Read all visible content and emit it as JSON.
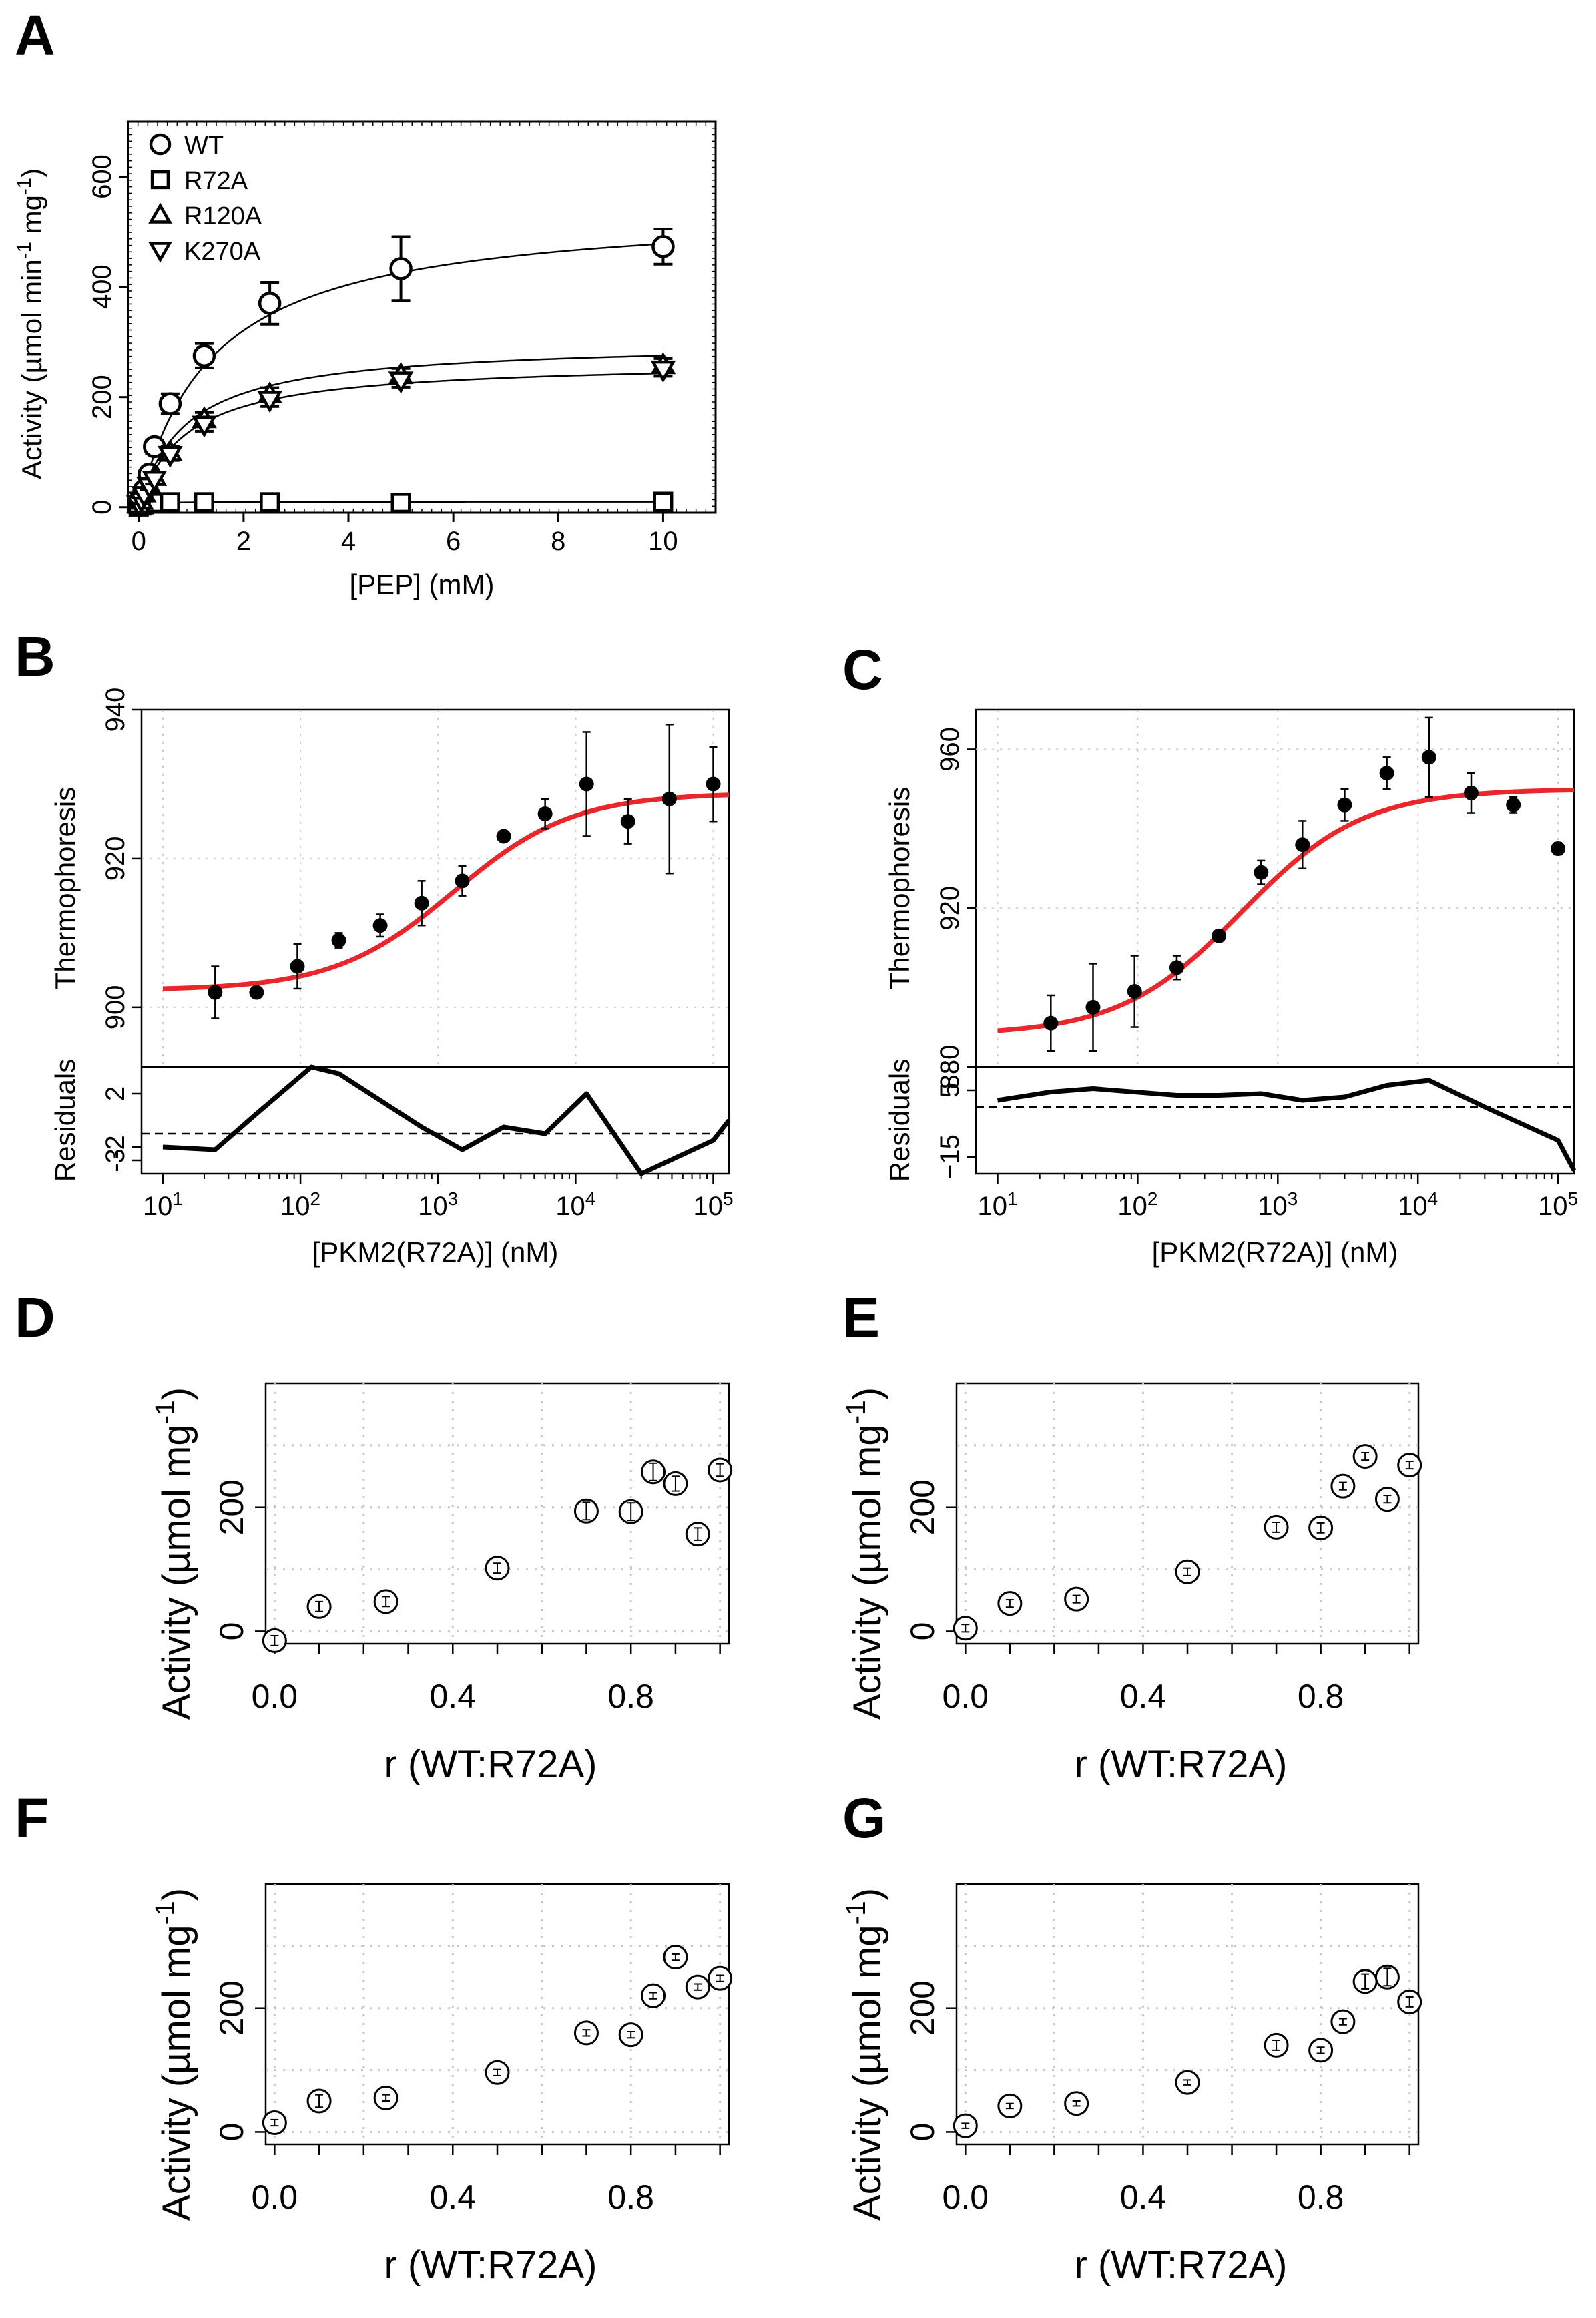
{
  "panel_labels": [
    "A",
    "B",
    "C",
    "D",
    "E",
    "F",
    "G"
  ],
  "colors": {
    "fit_red": "#e8262b",
    "ink": "#000000",
    "grid": "#c8c8c8"
  },
  "chart_data": [
    {
      "id": "A",
      "type": "scatter",
      "xlabel": "[PEP] (mM)",
      "ylabel": "Activity (µmol min⁻¹ mg⁻¹)",
      "xlim": [
        -0.2,
        11
      ],
      "ylim": [
        -10,
        700
      ],
      "xticks": [
        0,
        2,
        4,
        6,
        8,
        10
      ],
      "yticks": [
        0,
        200,
        400,
        600
      ],
      "legend_position": "top-left",
      "series": [
        {
          "name": "WT",
          "marker": "circle",
          "x": [
            0,
            0.05,
            0.1,
            0.2,
            0.3,
            0.6,
            1.25,
            2.5,
            5,
            10
          ],
          "y": [
            8,
            15,
            30,
            60,
            110,
            188,
            275,
            370,
            433,
            473
          ],
          "err": [
            5,
            5,
            8,
            10,
            12,
            18,
            22,
            38,
            58,
            32
          ],
          "fit": {
            "vmax": 545,
            "km": 1.4
          }
        },
        {
          "name": "R72A",
          "marker": "square",
          "x": [
            0,
            0.05,
            0.1,
            0.2,
            0.3,
            0.6,
            1.25,
            2.5,
            5,
            10
          ],
          "y": [
            1,
            3,
            5,
            7,
            8,
            9,
            9,
            9,
            8,
            10
          ],
          "err": [
            1,
            1,
            1,
            1,
            1,
            1,
            1,
            1,
            1,
            1
          ],
          "fit": {
            "vmax": 10,
            "km": 0.15
          }
        },
        {
          "name": "R120A",
          "marker": "triangle",
          "x": [
            0,
            0.05,
            0.1,
            0.2,
            0.3,
            0.6,
            1.25,
            2.5,
            5,
            10
          ],
          "y": [
            5,
            12,
            25,
            40,
            55,
            100,
            160,
            205,
            240,
            258
          ],
          "err": [
            4,
            5,
            6,
            6,
            8,
            10,
            12,
            12,
            12,
            12
          ],
          "fit": {
            "vmax": 300,
            "km": 0.9
          }
        },
        {
          "name": "K270A",
          "marker": "triangle-down",
          "x": [
            0,
            0.05,
            0.1,
            0.2,
            0.3,
            0.6,
            1.25,
            2.5,
            5,
            10
          ],
          "y": [
            5,
            12,
            22,
            38,
            50,
            95,
            150,
            195,
            230,
            250
          ],
          "err": [
            4,
            5,
            6,
            6,
            8,
            10,
            12,
            12,
            12,
            12
          ],
          "fit": {
            "vmax": 265,
            "km": 0.9
          }
        }
      ]
    },
    {
      "id": "B",
      "type": "scatter",
      "xlabel": "[PKM2(R72A)] (nM)",
      "ylabel": "Thermophoresis",
      "residual_label": "Residuals",
      "x_log": true,
      "xlim": [
        7,
        130000
      ],
      "ylim": [
        892,
        940
      ],
      "yticks": [
        900,
        920,
        940
      ],
      "res_ylim": [
        -4,
        4
      ],
      "res_yticks": [
        2,
        -2,
        -3
      ],
      "x": [
        24,
        48,
        95,
        190,
        380,
        760,
        1500,
        3000,
        6000,
        12000,
        24000,
        48000,
        100000
      ],
      "y": [
        902,
        902,
        905.5,
        909,
        911,
        914,
        917,
        923,
        926,
        930,
        925,
        928,
        930
      ],
      "err": [
        3.5,
        0.5,
        3,
        1,
        1.5,
        3,
        2,
        0.5,
        2,
        7,
        3,
        10,
        5
      ],
      "fit": {
        "bottom": 902.3,
        "top": 928.8,
        "ec50": 1300,
        "hill": 1
      },
      "residuals": {
        "x": [
          10,
          24,
          48,
          120,
          190,
          380,
          760,
          1500,
          3000,
          6000,
          12000,
          30000,
          100000,
          130000
        ],
        "y": [
          -2,
          -2.2,
          0.5,
          4,
          3.5,
          1.5,
          -0.5,
          -2.2,
          -0.5,
          -1,
          2,
          -4,
          -1.5,
          0
        ]
      }
    },
    {
      "id": "C",
      "type": "scatter",
      "xlabel": "[PKM2(R72A)] (nM)",
      "ylabel": "Thermophoresis",
      "residual_label": "Residuals",
      "x_log": true,
      "xlim": [
        7,
        130000
      ],
      "ylim": [
        880,
        970
      ],
      "yticks": [
        880,
        920,
        960
      ],
      "res_ylim": [
        -20,
        12
      ],
      "res_yticks": [
        5,
        -15
      ],
      "res_tick_labels": [
        "5",
        "−15"
      ],
      "x": [
        24,
        48,
        95,
        190,
        380,
        760,
        1500,
        3000,
        6000,
        12000,
        24000,
        48000,
        100000
      ],
      "y": [
        891,
        895,
        899,
        905,
        913,
        929,
        936,
        946,
        954,
        958,
        949,
        946,
        935
      ],
      "err": [
        7,
        11,
        9,
        3,
        1,
        3,
        6,
        4,
        4,
        10,
        5,
        2,
        1.5
      ],
      "fit": {
        "bottom": 888,
        "top": 950,
        "ec50": 550,
        "hill": 1
      },
      "residuals": {
        "x": [
          10,
          24,
          48,
          95,
          190,
          380,
          760,
          1500,
          3000,
          6000,
          12000,
          30000,
          100000,
          130000
        ],
        "y": [
          2,
          4.5,
          5.5,
          4.5,
          3.5,
          3.5,
          4,
          2,
          3,
          6.5,
          8,
          0,
          -10,
          -19
        ]
      }
    },
    {
      "id": "D",
      "type": "scatter",
      "xlabel": "r (WT:R72A)",
      "ylabel": "Activity (µmol mg⁻¹)",
      "xlim": [
        -0.02,
        1.02
      ],
      "ylim": [
        -20,
        400
      ],
      "xticks": [
        0.0,
        0.4,
        0.8
      ],
      "xtick_labels": [
        "0.0",
        "0.4",
        "0.8"
      ],
      "yticks": [
        0,
        200
      ],
      "x": [
        0,
        0.1,
        0.25,
        0.5,
        0.7,
        0.8,
        0.85,
        0.9,
        0.95,
        1.0
      ],
      "y": [
        -15,
        40,
        48,
        102,
        194,
        193,
        257,
        238,
        157,
        260
      ],
      "err": [
        8,
        8,
        8,
        8,
        14,
        14,
        14,
        12,
        10,
        10
      ]
    },
    {
      "id": "E",
      "type": "scatter",
      "xlabel": "r (WT:R72A)",
      "ylabel": "Activity (µmol mg⁻¹)",
      "xlim": [
        -0.02,
        1.02
      ],
      "ylim": [
        -20,
        400
      ],
      "xticks": [
        0.0,
        0.4,
        0.8
      ],
      "xtick_labels": [
        "0.0",
        "0.4",
        "0.8"
      ],
      "yticks": [
        0,
        200
      ],
      "x": [
        0,
        0.1,
        0.25,
        0.5,
        0.7,
        0.8,
        0.85,
        0.9,
        0.95,
        1.0
      ],
      "y": [
        5,
        45,
        52,
        96,
        168,
        167,
        234,
        282,
        213,
        268
      ],
      "err": [
        6,
        6,
        6,
        6,
        8,
        8,
        6,
        6,
        6,
        6
      ]
    },
    {
      "id": "F",
      "type": "scatter",
      "xlabel": "r (WT:R72A)",
      "ylabel": "Activity (µmol mg⁻¹)",
      "xlim": [
        -0.02,
        1.02
      ],
      "ylim": [
        -20,
        400
      ],
      "xticks": [
        0.0,
        0.4,
        0.8
      ],
      "xtick_labels": [
        "0.0",
        "0.4",
        "0.8"
      ],
      "yticks": [
        0,
        200
      ],
      "x": [
        0,
        0.1,
        0.25,
        0.5,
        0.7,
        0.8,
        0.85,
        0.9,
        0.95,
        1.0
      ],
      "y": [
        15,
        50,
        55,
        96,
        160,
        157,
        220,
        282,
        234,
        248
      ],
      "err": [
        5,
        10,
        5,
        5,
        5,
        5,
        5,
        5,
        5,
        5
      ]
    },
    {
      "id": "G",
      "type": "scatter",
      "xlabel": "r (WT:R72A)",
      "ylabel": "Activity (µmol mg⁻¹)",
      "xlim": [
        -0.02,
        1.02
      ],
      "ylim": [
        -20,
        400
      ],
      "xticks": [
        0.0,
        0.4,
        0.8
      ],
      "xtick_labels": [
        "0.0",
        "0.4",
        "0.8"
      ],
      "yticks": [
        0,
        200
      ],
      "x": [
        0,
        0.1,
        0.25,
        0.5,
        0.7,
        0.8,
        0.85,
        0.9,
        0.95,
        1.0
      ],
      "y": [
        10,
        42,
        46,
        80,
        140,
        132,
        178,
        243,
        250,
        210
      ],
      "err": [
        4,
        4,
        4,
        4,
        8,
        5,
        5,
        12,
        14,
        8
      ]
    }
  ]
}
